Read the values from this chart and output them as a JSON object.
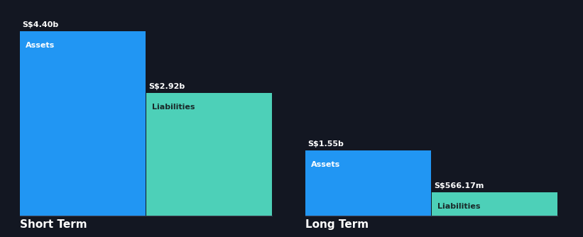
{
  "background_color": "#131722",
  "text_color": "#ffffff",
  "bar_color_assets": "#2196f3",
  "bar_color_liabilities": "#4dd0b8",
  "groups": [
    "Short Term",
    "Long Term"
  ],
  "short_term": {
    "assets_value": 4.4,
    "liabilities_value": 2.92,
    "assets_label": "S$4.40b",
    "liabilities_label": "S$2.92b",
    "assets_bar_label": "Assets",
    "liabilities_bar_label": "Liabilities"
  },
  "long_term": {
    "assets_value": 1.55,
    "liabilities_value": 0.56617,
    "assets_label": "S$1.55b",
    "liabilities_label": "S$566.17m",
    "assets_bar_label": "Assets",
    "liabilities_bar_label": "Liabilities"
  },
  "group_label_fontsize": 11,
  "value_label_fontsize": 8,
  "bar_inner_label_fontsize": 8,
  "baseline_color": "#3a3a4a",
  "liabilities_text_color": "#1a2a2a"
}
